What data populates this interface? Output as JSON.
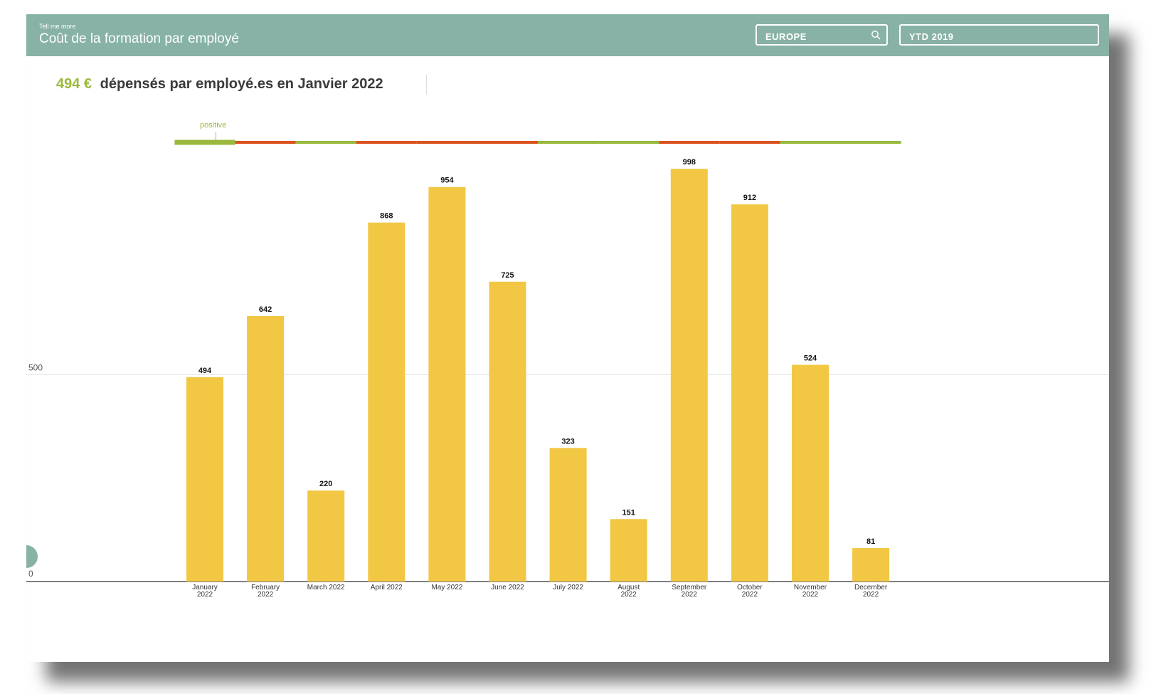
{
  "header": {
    "small_label": "Tell me more",
    "title": "Coût de la formation par employé",
    "region_filter": "EUROPE",
    "period_filter": "YTD 2019"
  },
  "kpi": {
    "value": "494 €",
    "text": "dépensés par employé.es en Janvier 2022"
  },
  "indicator": {
    "label": "positive",
    "segments": [
      "positive",
      "negative",
      "positive",
      "negative",
      "negative",
      "negative",
      "positive",
      "positive",
      "negative",
      "negative",
      "positive",
      "positive"
    ]
  },
  "colors": {
    "header": "#87b2a5",
    "bar": "#f2c744",
    "positive": "#9ab93c",
    "negative": "#d9531e",
    "kpi_value": "#9ab93c"
  },
  "chart_data": {
    "type": "bar",
    "categories": [
      [
        "January",
        "2022"
      ],
      [
        "February",
        "2022"
      ],
      [
        "March 2022"
      ],
      [
        "April 2022"
      ],
      [
        "May 2022"
      ],
      [
        "June 2022"
      ],
      [
        "July 2022"
      ],
      [
        "August",
        "2022"
      ],
      [
        "September",
        "2022"
      ],
      [
        "October",
        "2022"
      ],
      [
        "November",
        "2022"
      ],
      [
        "December",
        "2022"
      ]
    ],
    "values": [
      494,
      642,
      220,
      868,
      954,
      725,
      323,
      151,
      998,
      912,
      524,
      81
    ],
    "yticks": [
      0,
      500
    ],
    "ylim": [
      0,
      1000
    ],
    "grid": true
  }
}
